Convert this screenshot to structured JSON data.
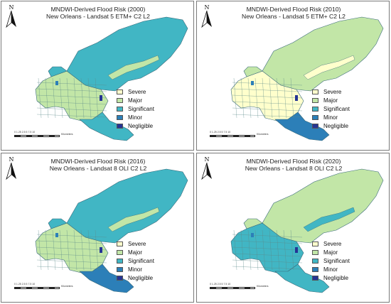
{
  "panels": [
    {
      "title_line1": "MNDWI-Derived Flood Risk (2000)",
      "title_line2": "New Orleans - Landsat 5 ETM+ C2 L2",
      "dominant": "significant",
      "accent": "major",
      "river_class": "significant"
    },
    {
      "title_line1": "MNDWI-Derived Flood Risk (2010)",
      "title_line2": "New Orleans - Landsat 5 ETM+ C2 L2",
      "dominant": "major",
      "accent": "severe",
      "river_class": "minor"
    },
    {
      "title_line1": "MNDWI-Derived Flood Risk (2016)",
      "title_line2": "New Orleans - Landsat 8 OLI C2 L2",
      "dominant": "significant",
      "accent": "major",
      "river_class": "minor"
    },
    {
      "title_line1": "MNDWI-Derived Flood Risk (2020)",
      "title_line2": "New Orleans - Landsat 8 OLI C2 L2",
      "dominant": "major",
      "accent": "significant",
      "river_class": "significant"
    }
  ],
  "legend": [
    {
      "label": "Severe",
      "key": "severe",
      "color": "#ffffcc"
    },
    {
      "label": "Major",
      "key": "major",
      "color": "#c2e6a7"
    },
    {
      "label": "Significant",
      "key": "significant",
      "color": "#41b6c4"
    },
    {
      "label": "Minor",
      "key": "minor",
      "color": "#2c7fb8"
    },
    {
      "label": "Negligible",
      "key": "negligible",
      "color": "#253494"
    }
  ],
  "north_label": "N",
  "scale": {
    "ticks": "0 1.25 2.5  5  7.5  10",
    "unit": "Kilometers"
  },
  "icons": [
    "north-arrow-icon",
    "scale-bar-icon"
  ]
}
